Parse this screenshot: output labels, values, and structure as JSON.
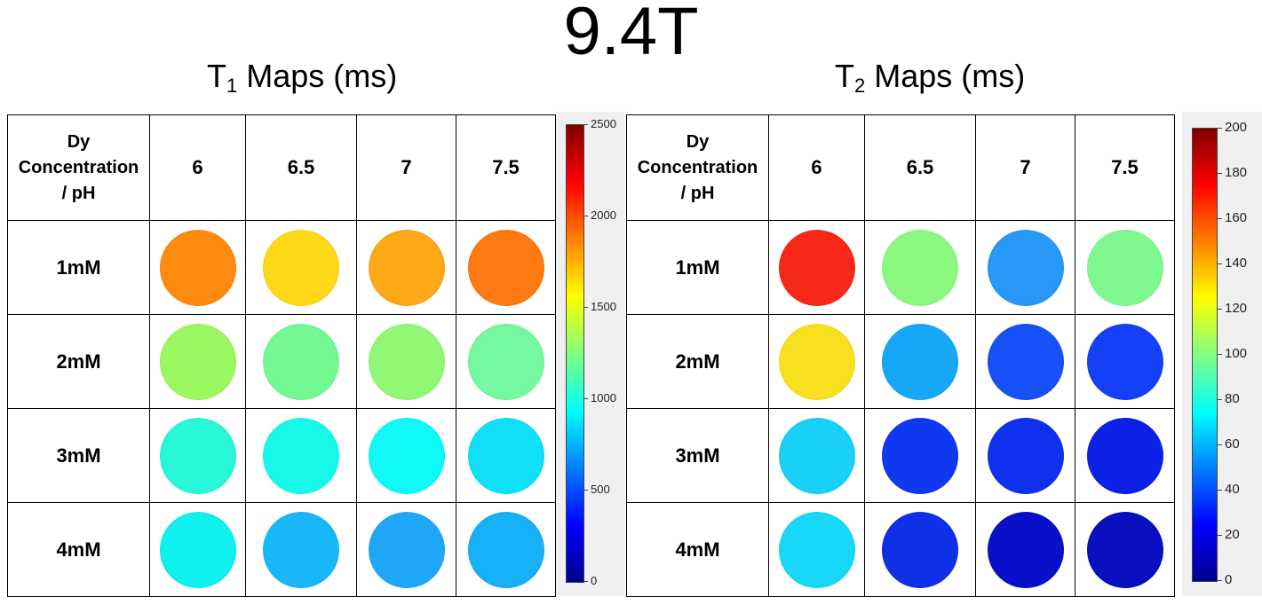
{
  "main_title": "9.4T",
  "t1": {
    "title": "T",
    "subscript": "1",
    "title_suffix": " Maps (ms)",
    "corner_label": [
      "Dy",
      "Concentration",
      "/ pH"
    ],
    "ph_headers": [
      "6",
      "6.5",
      "7",
      "7.5"
    ],
    "rows": [
      {
        "label": "1mM",
        "colors": [
          "#ff8a10",
          "#ffd818",
          "#ffa818",
          "#ff7a10"
        ]
      },
      {
        "label": "2mM",
        "colors": [
          "#9cf860",
          "#74f894",
          "#90f874",
          "#74f8a0"
        ]
      },
      {
        "label": "3mM",
        "colors": [
          "#28f8d8",
          "#18f8e8",
          "#10f8f8",
          "#10e0f8"
        ]
      },
      {
        "label": "4mM",
        "colors": [
          "#10f0f0",
          "#18b8f8",
          "#20a8f8",
          "#18b0f8"
        ]
      }
    ],
    "colorbar": {
      "min": 0,
      "max": 2500,
      "ticks": [
        "0",
        "500",
        "1000",
        "1500",
        "2000",
        "2500"
      ]
    }
  },
  "t2": {
    "title": "T",
    "subscript": "2",
    "title_suffix": " Maps (ms)",
    "corner_label": [
      "Dy",
      "Concentration",
      "/ pH"
    ],
    "ph_headers": [
      "6",
      "6.5",
      "7",
      "7.5"
    ],
    "rows": [
      {
        "label": "1mM",
        "colors": [
          "#f82818",
          "#8cf880",
          "#2898f8",
          "#80f890"
        ]
      },
      {
        "label": "2mM",
        "colors": [
          "#f8e020",
          "#18a8f8",
          "#1850f8",
          "#1440f8"
        ]
      },
      {
        "label": "3mM",
        "colors": [
          "#18d0f8",
          "#1038f0",
          "#1030f0",
          "#0c20e8"
        ]
      },
      {
        "label": "4mM",
        "colors": [
          "#18d8f8",
          "#1030e8",
          "#0810c8",
          "#0810c0"
        ]
      }
    ],
    "colorbar": {
      "min": 0,
      "max": 200,
      "ticks": [
        "0",
        "20",
        "40",
        "60",
        "80",
        "100",
        "120",
        "140",
        "160",
        "180",
        "200"
      ]
    }
  }
}
